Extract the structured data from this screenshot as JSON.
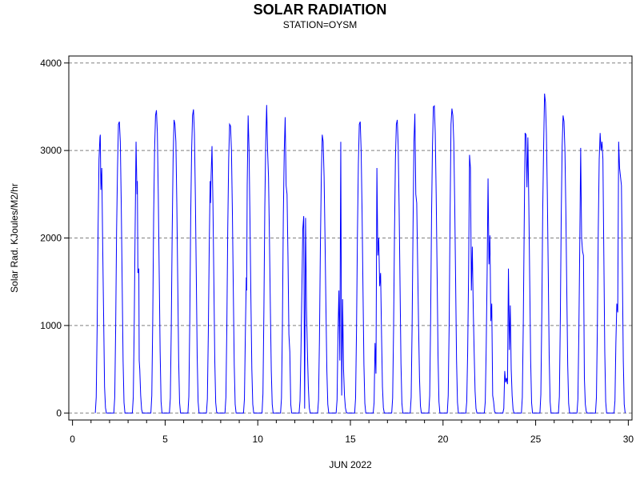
{
  "chart_data": {
    "type": "line",
    "title": "SOLAR RADIATION",
    "subtitle": "STATION=OYSM",
    "xlabel": "JUN 2022",
    "ylabel": "Solar Rad. KJoules/M2/hr",
    "xlim": [
      -0.2,
      30.2
    ],
    "ylim": [
      -80,
      4080
    ],
    "x_ticks": [
      0,
      5,
      10,
      15,
      20,
      25,
      30
    ],
    "x_tick_labels": [
      "0",
      "5",
      "10",
      "15",
      "20",
      "25",
      "30"
    ],
    "y_ticks": [
      0,
      1000,
      2000,
      3000,
      4000
    ],
    "y_tick_labels": [
      "0",
      "1000",
      "2000",
      "3000",
      "4000"
    ],
    "grid": "horizontal dashed",
    "line_color": "#0000ff",
    "series": [
      {
        "x": [
          1.23,
          1.28,
          1.33,
          1.38,
          1.43,
          1.48,
          1.5,
          1.53,
          1.58,
          1.63,
          1.68,
          1.73,
          1.78,
          1.83,
          2.23,
          2.28,
          2.33,
          2.38,
          2.43,
          2.48,
          2.53,
          2.58,
          2.63,
          2.68,
          2.73,
          2.78,
          2.83,
          3.23,
          3.28,
          3.33,
          3.38,
          3.43,
          3.48,
          3.5,
          3.53,
          3.58,
          3.6,
          3.63,
          3.68,
          3.73,
          3.78,
          3.83,
          4.23,
          4.28,
          4.33,
          4.38,
          4.43,
          4.48,
          4.53,
          4.58,
          4.63,
          4.68,
          4.73,
          4.78,
          4.83,
          5.23,
          5.28,
          5.33,
          5.38,
          5.43,
          5.48,
          5.53,
          5.58,
          5.63,
          5.68,
          5.73,
          5.78,
          5.83,
          6.23,
          6.28,
          6.33,
          6.38,
          6.43,
          6.48,
          6.53,
          6.58,
          6.63,
          6.68,
          6.73,
          6.78,
          6.83,
          7.23,
          7.28,
          7.33,
          7.38,
          7.43,
          7.45,
          7.48,
          7.53,
          7.58,
          7.63,
          7.68,
          7.73,
          7.78,
          7.83,
          8.23,
          8.28,
          8.33,
          8.38,
          8.43,
          8.48,
          8.53,
          8.58,
          8.63,
          8.68,
          8.73,
          8.78,
          8.83,
          9.23,
          9.28,
          9.33,
          9.38,
          9.4,
          9.43,
          9.48,
          9.53,
          9.58,
          9.63,
          9.68,
          9.73,
          9.78,
          9.83,
          10.23,
          10.28,
          10.33,
          10.38,
          10.43,
          10.48,
          10.53,
          10.58,
          10.63,
          10.68,
          10.73,
          10.78,
          10.83,
          11.23,
          11.28,
          11.33,
          11.38,
          11.43,
          11.48,
          11.53,
          11.58,
          11.63,
          11.68,
          11.73,
          11.78,
          11.83,
          12.23,
          12.28,
          12.33,
          12.38,
          12.43,
          12.48,
          12.53,
          12.58,
          12.63,
          12.68,
          12.73,
          12.78,
          12.83,
          13.23,
          13.28,
          13.33,
          13.38,
          13.43,
          13.48,
          13.53,
          13.58,
          13.63,
          13.68,
          13.73,
          13.78,
          13.83,
          14.23,
          14.28,
          14.33,
          14.38,
          14.43,
          14.48,
          14.53,
          14.58,
          14.63,
          14.68,
          14.73,
          14.78,
          14.83,
          15.23,
          15.28,
          15.33,
          15.38,
          15.43,
          15.48,
          15.53,
          15.58,
          15.63,
          15.68,
          15.73,
          15.78,
          15.83,
          16.23,
          16.28,
          16.33,
          16.38,
          16.43,
          16.48,
          16.53,
          16.58,
          16.63,
          16.68,
          16.73,
          16.78,
          16.83,
          17.23,
          17.28,
          17.33,
          17.38,
          17.43,
          17.48,
          17.53,
          17.58,
          17.63,
          17.68,
          17.73,
          17.78,
          17.83,
          18.23,
          18.28,
          18.33,
          18.38,
          18.43,
          18.48,
          18.53,
          18.58,
          18.63,
          18.68,
          18.73,
          18.78,
          18.83,
          19.23,
          19.28,
          19.33,
          19.38,
          19.43,
          19.48,
          19.53,
          19.58,
          19.63,
          19.68,
          19.73,
          19.78,
          19.83,
          20.23,
          20.28,
          20.33,
          20.38,
          20.43,
          20.48,
          20.53,
          20.58,
          20.63,
          20.68,
          20.73,
          20.78,
          20.83,
          21.23,
          21.28,
          21.33,
          21.38,
          21.43,
          21.48,
          21.53,
          21.58,
          21.63,
          21.68,
          21.73,
          21.78,
          21.83,
          22.23,
          22.28,
          22.33,
          22.38,
          22.43,
          22.48,
          22.53,
          22.58,
          22.63,
          22.68,
          22.73,
          22.78,
          22.83,
          23.23,
          23.28,
          23.33,
          23.38,
          23.43,
          23.48,
          23.53,
          23.58,
          23.63,
          23.68,
          23.73,
          23.78,
          23.83,
          24.23,
          24.28,
          24.33,
          24.38,
          24.43,
          24.48,
          24.53,
          24.58,
          24.63,
          24.68,
          24.73,
          24.78,
          24.83,
          25.23,
          25.28,
          25.33,
          25.38,
          25.43,
          25.48,
          25.53,
          25.58,
          25.63,
          25.68,
          25.73,
          25.78,
          25.83,
          26.23,
          26.28,
          26.33,
          26.38,
          26.43,
          26.48,
          26.53,
          26.58,
          26.63,
          26.68,
          26.73,
          26.78,
          26.83,
          27.23,
          27.28,
          27.33,
          27.38,
          27.43,
          27.48,
          27.53,
          27.58,
          27.63,
          27.68,
          27.73,
          27.78,
          27.83,
          28.23,
          28.28,
          28.33,
          28.38,
          28.43,
          28.48,
          28.53,
          28.58,
          28.63,
          28.68,
          28.73,
          28.78,
          28.83,
          29.23,
          29.28,
          29.33,
          29.38,
          29.43,
          29.48,
          29.53,
          29.58,
          29.63,
          29.68,
          29.73,
          29.78,
          29.83
        ],
        "values": [
          0,
          180,
          980,
          2100,
          2900,
          3150,
          3180,
          2550,
          2800,
          1900,
          1100,
          300,
          60,
          0,
          0,
          180,
          980,
          2100,
          2800,
          3300,
          3330,
          3100,
          2400,
          1500,
          600,
          120,
          0,
          0,
          180,
          980,
          2100,
          3100,
          2500,
          2650,
          1600,
          1650,
          600,
          500,
          200,
          40,
          0,
          0,
          0,
          200,
          1050,
          2250,
          3000,
          3400,
          3460,
          3200,
          2500,
          1600,
          700,
          130,
          0,
          0,
          170,
          950,
          2050,
          2900,
          3350,
          3300,
          3100,
          2400,
          1500,
          600,
          120,
          0,
          0,
          190,
          1050,
          2250,
          3000,
          3400,
          3470,
          3200,
          2500,
          1600,
          650,
          130,
          0,
          0,
          160,
          900,
          1900,
          2650,
          2400,
          2700,
          3050,
          2400,
          1500,
          600,
          120,
          10,
          0,
          0,
          180,
          980,
          2100,
          2900,
          3300,
          3280,
          3000,
          2300,
          1400,
          550,
          100,
          0,
          0,
          160,
          900,
          1550,
          1400,
          2600,
          3400,
          3000,
          2200,
          1300,
          500,
          100,
          0,
          0,
          0,
          220,
          1150,
          2350,
          3100,
          3520,
          3000,
          2700,
          2000,
          1200,
          480,
          100,
          0,
          0,
          170,
          1000,
          2250,
          3000,
          3380,
          2600,
          2500,
          1800,
          900,
          700,
          100,
          0,
          0,
          140,
          700,
          1400,
          2100,
          2250,
          50,
          2230,
          1200,
          700,
          300,
          60,
          0,
          0,
          150,
          850,
          1900,
          2700,
          3180,
          3100,
          2700,
          2000,
          1200,
          480,
          100,
          0,
          0,
          150,
          900,
          1400,
          600,
          3100,
          200,
          1300,
          500,
          200,
          60,
          10,
          0,
          0,
          170,
          950,
          2050,
          2850,
          3300,
          3330,
          3000,
          2300,
          1400,
          550,
          110,
          0,
          0,
          120,
          800,
          450,
          2800,
          1800,
          2000,
          1450,
          1600,
          900,
          300,
          60,
          0,
          0,
          170,
          950,
          2050,
          2900,
          3300,
          3350,
          3050,
          2350,
          1450,
          560,
          110,
          0,
          0,
          180,
          980,
          2100,
          3100,
          3420,
          2500,
          2400,
          1700,
          1000,
          400,
          80,
          0,
          0,
          200,
          1050,
          2250,
          3050,
          3500,
          3510,
          3200,
          2500,
          1600,
          650,
          130,
          0,
          0,
          200,
          1000,
          2250,
          3300,
          3480,
          3400,
          3100,
          2400,
          1500,
          600,
          120,
          0,
          0,
          130,
          700,
          1600,
          2950,
          2800,
          1400,
          1900,
          1200,
          700,
          250,
          50,
          0,
          0,
          130,
          750,
          1600,
          2680,
          1700,
          2030,
          1050,
          1250,
          200,
          130,
          20,
          0,
          0,
          50,
          480,
          350,
          400,
          330,
          1650,
          720,
          1230,
          500,
          200,
          40,
          0,
          0,
          180,
          980,
          2100,
          3200,
          3180,
          2580,
          3150,
          2400,
          1500,
          600,
          120,
          0,
          0,
          210,
          1100,
          2300,
          3050,
          3650,
          3550,
          3200,
          2500,
          1600,
          650,
          130,
          0,
          0,
          190,
          1050,
          2250,
          3050,
          3400,
          3330,
          3000,
          2300,
          1400,
          550,
          110,
          0,
          0,
          160,
          900,
          1900,
          3030,
          2000,
          1850,
          1800,
          400,
          100,
          20,
          0,
          0,
          0,
          180,
          980,
          2100,
          2900,
          3200,
          3000,
          3100,
          2900,
          1800,
          700,
          130,
          0,
          0,
          140,
          800,
          1250,
          1150,
          3100,
          2800,
          2700,
          2600,
          1600,
          600,
          100,
          0
        ]
      }
    ]
  }
}
